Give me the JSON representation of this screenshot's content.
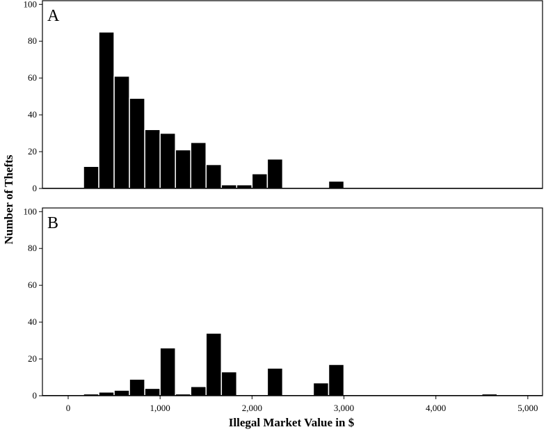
{
  "chart_data": {
    "type": "bar",
    "xlabel": "Illegal Market Value in $",
    "ylabel": "Number of Thefts",
    "bin_width": 166.67,
    "bin_starts": [
      -166.67,
      0,
      166.67,
      333.33,
      500,
      666.67,
      833.33,
      1000,
      1166.67,
      1333.33,
      1500,
      1666.67,
      1833.33,
      2000,
      2166.67,
      2333.33,
      2500,
      2666.67,
      2833.33,
      3000,
      3166.67,
      3333.33,
      3500,
      3666.67,
      3833.33,
      4000,
      4166.67,
      4333.33,
      4500,
      4666.67,
      4833.33,
      5000
    ],
    "xlim": [
      -280,
      5160
    ],
    "xticks": [
      0,
      1000,
      2000,
      3000,
      4000,
      5000
    ],
    "xtick_labels": [
      "0",
      "1,000",
      "2,000",
      "3,000",
      "4,000",
      "5,000"
    ],
    "panels": [
      {
        "label": "A",
        "ylim": [
          0,
          102
        ],
        "yticks": [
          0,
          20,
          40,
          60,
          80,
          100
        ],
        "ytick_labels": [
          "0",
          "20",
          "40",
          "60",
          "80",
          "100"
        ],
        "values": [
          0,
          0,
          12,
          85,
          61,
          49,
          32,
          30,
          21,
          25,
          13,
          2,
          2,
          8,
          16,
          0,
          0,
          0,
          4,
          0,
          0,
          0,
          0,
          0,
          0,
          0,
          0,
          0,
          0,
          0,
          0,
          0
        ]
      },
      {
        "label": "B",
        "ylim": [
          0,
          102
        ],
        "yticks": [
          0,
          20,
          40,
          60,
          80,
          100
        ],
        "ytick_labels": [
          "0",
          "20",
          "40",
          "60",
          "80",
          "100"
        ],
        "values": [
          0,
          0,
          1,
          2,
          3,
          9,
          4,
          26,
          1,
          5,
          34,
          13,
          0,
          0,
          15,
          0,
          0,
          7,
          17,
          0,
          0,
          0,
          0,
          0,
          0,
          0,
          0,
          0,
          1,
          0,
          0,
          0
        ]
      }
    ]
  }
}
